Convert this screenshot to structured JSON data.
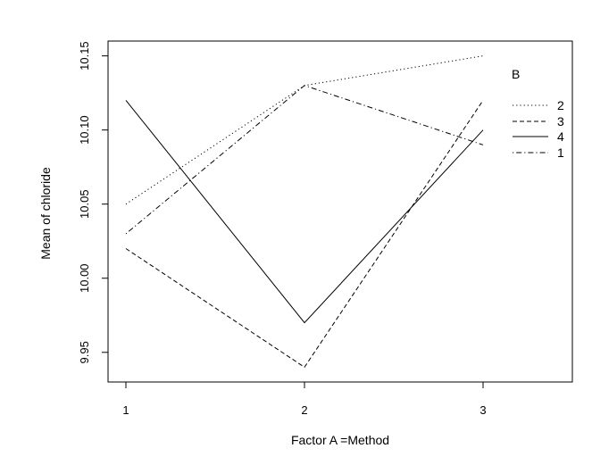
{
  "chart_data": {
    "type": "line",
    "title": "",
    "xlabel": "Factor A =Method",
    "ylabel": "Mean of chloride",
    "categories": [
      "1",
      "2",
      "3"
    ],
    "xlim": [
      0.9,
      3.5
    ],
    "ylim": [
      9.93,
      10.16
    ],
    "yticks": [
      9.95,
      10.0,
      10.05,
      10.1,
      10.15
    ],
    "ytick_labels": [
      "9.95",
      "10.00",
      "10.05",
      "10.10",
      "10.15"
    ],
    "grid": false,
    "legend": {
      "title": "B",
      "placement": "top-right",
      "order": [
        "2",
        "3",
        "4",
        "1"
      ]
    },
    "series": [
      {
        "name": "2",
        "dash": "dotted",
        "values": [
          10.05,
          10.13,
          10.15
        ]
      },
      {
        "name": "3",
        "dash": "dashed",
        "values": [
          10.02,
          9.94,
          10.12
        ]
      },
      {
        "name": "4",
        "dash": "solid",
        "values": [
          10.12,
          9.97,
          10.1
        ]
      },
      {
        "name": "1",
        "dash": "dotdash",
        "values": [
          10.03,
          10.13,
          10.09
        ]
      }
    ],
    "line_color": "#000000"
  }
}
